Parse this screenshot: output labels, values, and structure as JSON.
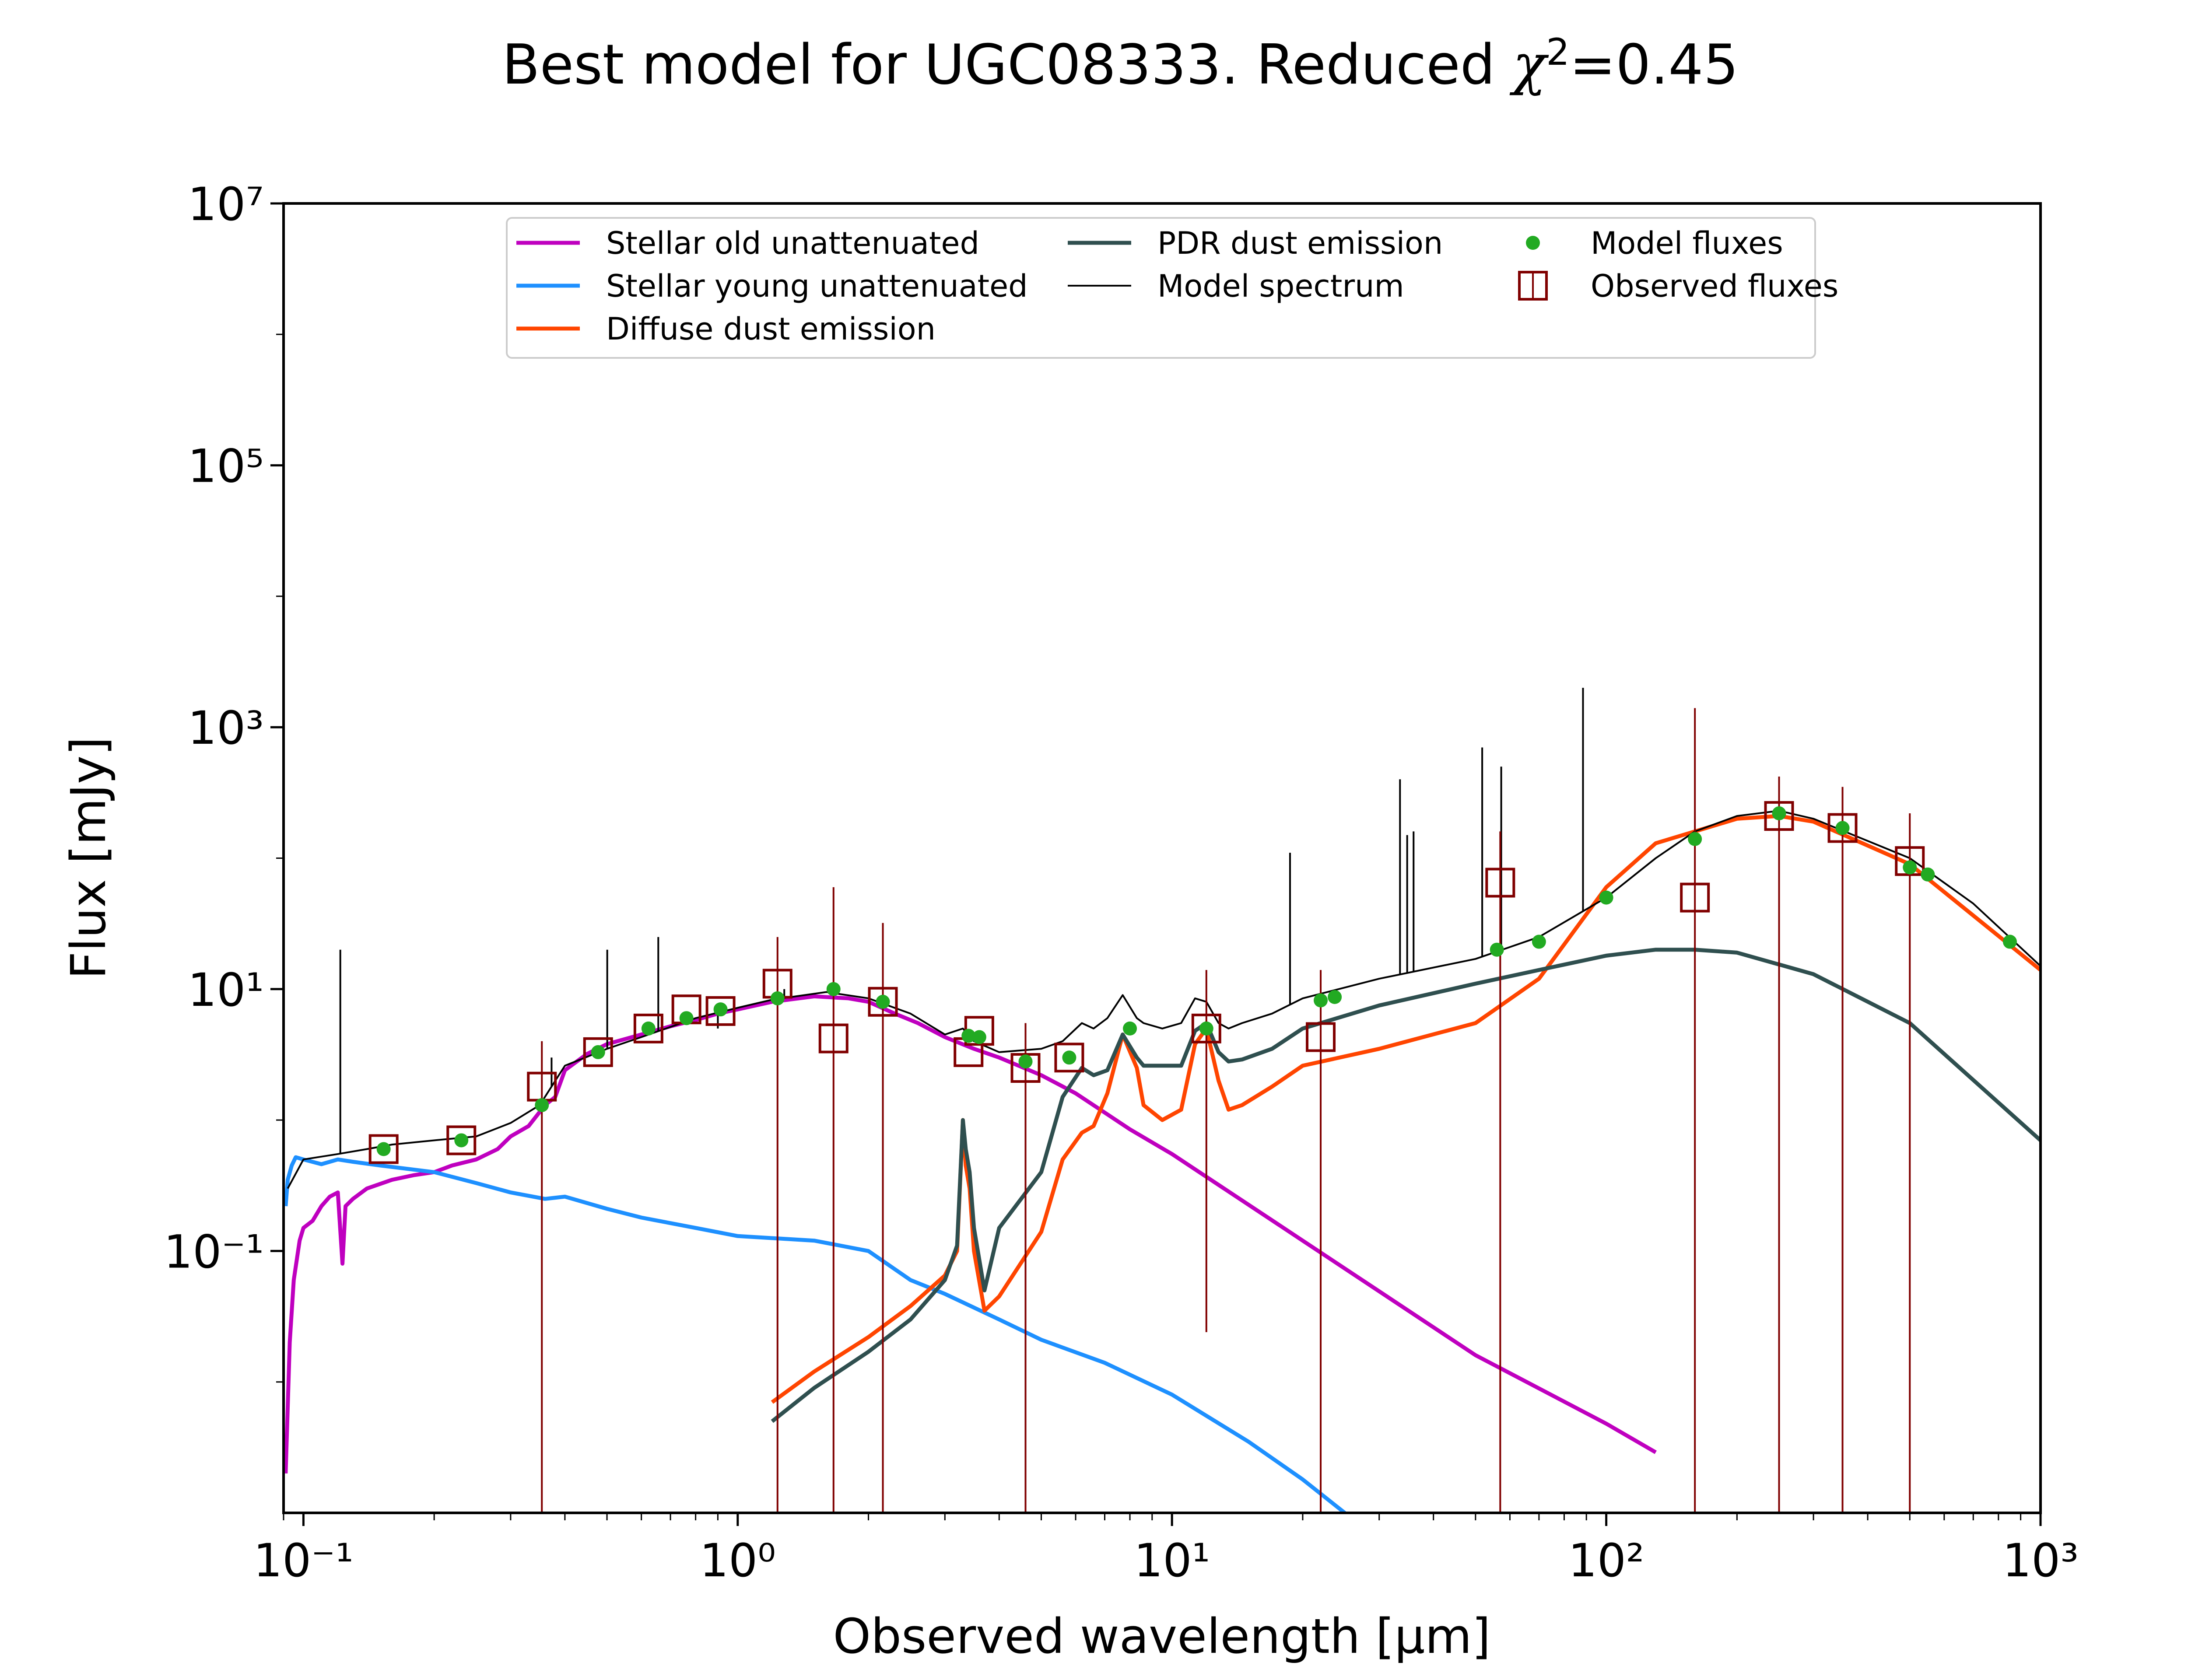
{
  "chart_data": {
    "type": "line",
    "title": {
      "before": "Best model for UGC08333. Reduced ",
      "chi": "χ",
      "sup": "2",
      "after": "=0.45"
    },
    "xlabel": "Observed wavelength [μm]",
    "ylabel": "Flux [mJy]",
    "xscale": "log",
    "yscale": "log",
    "xlim": [
      0.09,
      1000
    ],
    "ylim": [
      0.001,
      10000000
    ],
    "xticks": [
      {
        "value": 0.1,
        "label": "10⁻¹"
      },
      {
        "value": 1,
        "label": "10⁰"
      },
      {
        "value": 10,
        "label": "10¹"
      },
      {
        "value": 100,
        "label": "10²"
      },
      {
        "value": 1000,
        "label": "10³"
      }
    ],
    "yticks": [
      {
        "value": 0.1,
        "label": "10⁻¹"
      },
      {
        "value": 10,
        "label": "10¹"
      },
      {
        "value": 1000,
        "label": "10³"
      },
      {
        "value": 100000,
        "label": "10⁵"
      },
      {
        "value": 10000000,
        "label": "10⁷"
      }
    ],
    "legend": {
      "placement": "upper center",
      "entries": [
        {
          "label": "Stellar old unattenuated",
          "kind": "line",
          "color": "#bf00bf"
        },
        {
          "label": "Stellar young unattenuated",
          "kind": "line",
          "color": "#1e90ff"
        },
        {
          "label": "Diffuse dust emission",
          "kind": "line",
          "color": "#ff4500"
        },
        {
          "label": "PDR dust emission",
          "kind": "line",
          "color": "#2f4f4f"
        },
        {
          "label": "Model spectrum",
          "kind": "thinline",
          "color": "#000000"
        },
        {
          "label": "Model fluxes",
          "kind": "dot",
          "color": "#22aa22"
        },
        {
          "label": "Observed fluxes",
          "kind": "square",
          "color": "#800000"
        }
      ]
    },
    "series": [
      {
        "name": "Stellar old unattenuated",
        "color": "#bf00bf",
        "x": [
          0.091,
          0.093,
          0.095,
          0.098,
          0.1,
          0.105,
          0.11,
          0.115,
          0.12,
          0.123,
          0.125,
          0.13,
          0.14,
          0.16,
          0.18,
          0.2,
          0.22,
          0.25,
          0.28,
          0.3,
          0.33,
          0.36,
          0.38,
          0.4,
          0.45,
          0.5,
          0.6,
          0.7,
          0.8,
          0.9,
          1.0,
          1.2,
          1.5,
          1.8,
          2.0,
          2.3,
          2.6,
          3.0,
          3.5,
          4.0,
          5.0,
          6.0,
          8.0,
          10,
          20,
          50,
          100,
          130
        ],
        "y": [
          0.002,
          0.02,
          0.06,
          0.12,
          0.15,
          0.17,
          0.22,
          0.26,
          0.28,
          0.08,
          0.22,
          0.25,
          0.3,
          0.35,
          0.38,
          0.4,
          0.45,
          0.5,
          0.6,
          0.75,
          0.9,
          1.3,
          1.5,
          2.4,
          3.2,
          3.8,
          4.5,
          5.2,
          5.8,
          6.5,
          7.0,
          8.0,
          8.8,
          8.5,
          8.0,
          6.5,
          5.5,
          4.3,
          3.5,
          3.0,
          2.2,
          1.6,
          0.85,
          0.55,
          0.12,
          0.016,
          0.0048,
          0.0029
        ]
      },
      {
        "name": "Stellar young unattenuated",
        "color": "#1e90ff",
        "x": [
          0.091,
          0.092,
          0.094,
          0.096,
          0.1,
          0.11,
          0.12,
          0.13,
          0.15,
          0.2,
          0.25,
          0.3,
          0.36,
          0.4,
          0.5,
          0.6,
          0.8,
          1.0,
          1.5,
          2.0,
          2.5,
          3.0,
          4.0,
          5.0,
          7.0,
          10,
          15,
          20,
          25
        ],
        "y": [
          0.22,
          0.35,
          0.45,
          0.52,
          0.5,
          0.46,
          0.5,
          0.48,
          0.45,
          0.4,
          0.33,
          0.28,
          0.25,
          0.26,
          0.21,
          0.18,
          0.15,
          0.13,
          0.12,
          0.1,
          0.06,
          0.047,
          0.03,
          0.021,
          0.014,
          0.008,
          0.0035,
          0.0018,
          0.001
        ]
      },
      {
        "name": "Diffuse dust emission",
        "color": "#ff4500",
        "x": [
          1.2,
          1.5,
          2.0,
          2.5,
          3.0,
          3.2,
          3.3,
          3.35,
          3.42,
          3.5,
          3.7,
          4.0,
          5.0,
          5.6,
          6.2,
          6.6,
          7.1,
          7.7,
          8.3,
          8.6,
          9.5,
          10.5,
          11.3,
          12.0,
          12.8,
          13.5,
          14.5,
          17,
          20,
          30,
          50,
          70,
          100,
          130,
          200,
          250,
          300,
          500,
          1000
        ],
        "y": [
          0.007,
          0.012,
          0.022,
          0.038,
          0.065,
          0.1,
          1.0,
          0.45,
          0.3,
          0.1,
          0.035,
          0.045,
          0.14,
          0.5,
          0.8,
          0.9,
          1.6,
          4.5,
          2.5,
          1.3,
          1.0,
          1.2,
          3.8,
          5.0,
          2.0,
          1.2,
          1.3,
          1.8,
          2.6,
          3.5,
          5.5,
          12,
          60,
          130,
          200,
          210,
          190,
          90,
          14
        ]
      },
      {
        "name": "PDR dust emission",
        "color": "#2f4f4f",
        "x": [
          1.2,
          1.5,
          2.0,
          2.5,
          3.0,
          3.2,
          3.3,
          3.35,
          3.42,
          3.5,
          3.7,
          4.0,
          5.0,
          5.6,
          6.2,
          6.6,
          7.1,
          7.7,
          8.3,
          8.6,
          9.5,
          10.5,
          11.3,
          12.0,
          12.8,
          13.5,
          14.5,
          17,
          20,
          30,
          50,
          70,
          100,
          130,
          160,
          200,
          300,
          500,
          1000
        ],
        "y": [
          0.005,
          0.009,
          0.017,
          0.03,
          0.06,
          0.11,
          1.0,
          0.6,
          0.4,
          0.15,
          0.05,
          0.15,
          0.4,
          1.5,
          2.5,
          2.2,
          2.4,
          4.5,
          3.0,
          2.6,
          2.6,
          2.6,
          4.8,
          5.5,
          3.3,
          2.8,
          2.9,
          3.5,
          5.0,
          7.5,
          11,
          14,
          18,
          20,
          20,
          19,
          13,
          5.5,
          0.7
        ]
      },
      {
        "name": "Model spectrum",
        "color": "#000000",
        "x": [
          0.092,
          0.1,
          0.12,
          0.14,
          0.16,
          0.2,
          0.25,
          0.3,
          0.35,
          0.4,
          0.5,
          0.6,
          0.8,
          1.0,
          1.2,
          1.6,
          2.0,
          2.5,
          3.0,
          3.3,
          3.5,
          4.0,
          5.0,
          5.6,
          6.2,
          6.6,
          7.1,
          7.7,
          8.3,
          8.6,
          9.5,
          10.5,
          11.3,
          12.0,
          12.8,
          13.5,
          14.5,
          17,
          20,
          30,
          50,
          70,
          100,
          130,
          160,
          200,
          250,
          300,
          500,
          700,
          1000
        ],
        "y": [
          0.3,
          0.5,
          0.55,
          0.6,
          0.65,
          0.7,
          0.75,
          0.95,
          1.3,
          2.6,
          3.5,
          4.3,
          6.0,
          7.2,
          8.3,
          9.5,
          8.5,
          6.5,
          4.5,
          5.0,
          4.0,
          3.3,
          3.5,
          4.0,
          5.5,
          5.0,
          6.0,
          9.0,
          6.0,
          5.5,
          5.0,
          5.5,
          8.5,
          8.0,
          5.5,
          5.0,
          5.5,
          6.5,
          8.5,
          12,
          17,
          25,
          50,
          100,
          160,
          210,
          230,
          200,
          100,
          45,
          15
        ]
      }
    ],
    "emission_lines": {
      "name": "Model spectrum",
      "color": "#000000",
      "x": [
        0.1216,
        0.3727,
        0.5007,
        0.6563,
        0.9,
        1.28,
        18.7,
        33.5,
        34.8,
        36,
        51.8,
        57.3,
        88.4
      ],
      "y_top": [
        20,
        3,
        20,
        25,
        5,
        10,
        110,
        400,
        150,
        160,
        700,
        500,
        2000
      ]
    },
    "model_fluxes": {
      "name": "Model fluxes",
      "color": "#22aa22",
      "x": [
        0.153,
        0.231,
        0.354,
        0.477,
        0.623,
        0.762,
        0.913,
        1.235,
        1.662,
        2.159,
        3.4,
        3.6,
        4.6,
        5.8,
        8.0,
        12.0,
        22.0,
        23.7,
        56,
        70,
        100,
        160,
        250,
        350,
        500,
        550,
        850
      ],
      "y": [
        0.6,
        0.7,
        1.3,
        3.3,
        5.0,
        6.0,
        7.0,
        8.5,
        10.0,
        8.0,
        4.4,
        4.3,
        2.8,
        3.0,
        5.0,
        5.0,
        8.2,
        8.7,
        20,
        23,
        50,
        140,
        220,
        170,
        85,
        75,
        23
      ]
    },
    "observed_fluxes": {
      "name": "Observed fluxes",
      "color": "#800000",
      "x": [
        0.153,
        0.231,
        0.354,
        0.477,
        0.623,
        0.762,
        0.913,
        1.235,
        1.662,
        2.159,
        3.4,
        3.6,
        4.6,
        5.8,
        12.0,
        22.0,
        57,
        160,
        250,
        350,
        500
      ],
      "y": [
        0.6,
        0.7,
        1.8,
        3.3,
        5.0,
        7.0,
        6.8,
        11,
        4.2,
        8.0,
        3.3,
        4.8,
        2.5,
        3.0,
        5.0,
        4.3,
        65,
        50,
        210,
        170,
        95
      ],
      "err_low": [
        null,
        null,
        0.001,
        null,
        null,
        null,
        null,
        0.001,
        0.001,
        0.001,
        null,
        null,
        0.001,
        null,
        0.024,
        0.001,
        0.001,
        0.001,
        0.001,
        0.001,
        0.001
      ],
      "err_high": [
        null,
        null,
        4.0,
        null,
        null,
        null,
        null,
        25,
        60,
        32,
        null,
        null,
        5.5,
        null,
        14,
        14,
        160,
        1400,
        420,
        350,
        220
      ]
    }
  }
}
